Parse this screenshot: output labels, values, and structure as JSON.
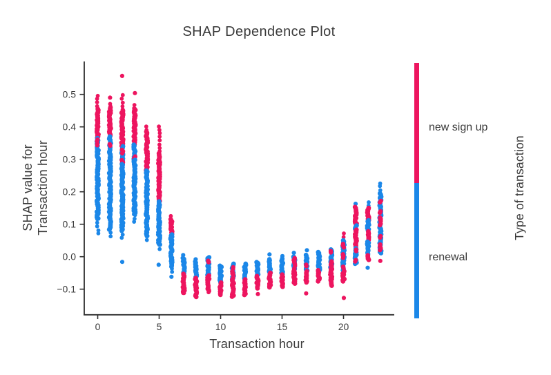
{
  "title": "SHAP Dependence Plot",
  "axes": {
    "x_label": "Transaction hour",
    "y_label_line1": "SHAP value for",
    "y_label_line2": "Transaction hour"
  },
  "legend": {
    "title": "Type of transaction",
    "top_label": "new sign up",
    "bottom_label": "renewal"
  },
  "colors": {
    "pink": "#ed155f",
    "blue": "#1b87e8",
    "text": "#3a3a3a",
    "axis": "#2f2f2f"
  },
  "chart_data": {
    "type": "scatter",
    "title": "SHAP Dependence Plot",
    "xlabel": "Transaction hour",
    "ylabel": "SHAP value for Transaction hour",
    "legend_title": "Type of transaction",
    "categories_legend": [
      "new sign up",
      "renewal"
    ],
    "series_colors": {
      "new sign up": "#ed155f",
      "renewal": "#1b87e8"
    },
    "xlim": [
      -1.3,
      24.2
    ],
    "ylim": [
      -0.155,
      0.61
    ],
    "x_ticks": [
      0,
      5,
      10,
      15,
      20
    ],
    "x_tick_labels": [
      "0",
      "5",
      "10",
      "15",
      "20"
    ],
    "y_ticks": [
      0.5,
      0.4,
      0.3,
      0.2,
      0.1,
      0.0,
      -0.1
    ],
    "y_tick_labels": [
      "0.5",
      "0.4",
      "0.3",
      "0.2",
      "0.1",
      "0.0",
      "−0.1"
    ],
    "grid": false,
    "legend_position": "right-colorbar",
    "columns": [
      {
        "hour": 0,
        "segments": [
          {
            "from": 0.495,
            "to": 0.455,
            "color": "pink",
            "style": "dots"
          },
          {
            "from": 0.455,
            "to": 0.365,
            "color": "pink",
            "style": "solid"
          },
          {
            "from": 0.365,
            "to": 0.295,
            "color": "blue",
            "style": "mixed",
            "fleck": "pink"
          },
          {
            "from": 0.295,
            "to": 0.115,
            "color": "blue",
            "style": "solid"
          },
          {
            "from": 0.115,
            "to": 0.062,
            "color": "blue",
            "style": "dots"
          }
        ]
      },
      {
        "hour": 1,
        "segments": [
          {
            "from": 0.49,
            "to": 0.49,
            "color": "pink",
            "style": "dot"
          },
          {
            "from": 0.472,
            "to": 0.46,
            "color": "pink",
            "style": "dots"
          },
          {
            "from": 0.46,
            "to": 0.37,
            "color": "pink",
            "style": "solid"
          },
          {
            "from": 0.37,
            "to": 0.305,
            "color": "blue",
            "style": "mixed",
            "fleck": "pink"
          },
          {
            "from": 0.305,
            "to": 0.083,
            "color": "blue",
            "style": "solid"
          },
          {
            "from": 0.083,
            "to": 0.055,
            "color": "blue",
            "style": "dots"
          }
        ]
      },
      {
        "hour": 2,
        "segments": [
          {
            "from": 0.557,
            "to": 0.557,
            "color": "pink",
            "style": "dot"
          },
          {
            "from": 0.497,
            "to": 0.45,
            "color": "pink",
            "style": "dots"
          },
          {
            "from": 0.45,
            "to": 0.34,
            "color": "pink",
            "style": "solid"
          },
          {
            "from": 0.34,
            "to": 0.285,
            "color": "blue",
            "style": "mixed",
            "fleck": "pink"
          },
          {
            "from": 0.285,
            "to": 0.079,
            "color": "blue",
            "style": "solid"
          },
          {
            "from": 0.079,
            "to": 0.048,
            "color": "blue",
            "style": "dots"
          },
          {
            "from": -0.016,
            "to": -0.016,
            "color": "blue",
            "style": "dot"
          }
        ]
      },
      {
        "hour": 3,
        "segments": [
          {
            "from": 0.504,
            "to": 0.504,
            "color": "pink",
            "style": "dot"
          },
          {
            "from": 0.468,
            "to": 0.455,
            "color": "pink",
            "style": "dots"
          },
          {
            "from": 0.455,
            "to": 0.345,
            "color": "pink",
            "style": "solid"
          },
          {
            "from": 0.345,
            "to": 0.298,
            "color": "blue",
            "style": "mixed",
            "fleck": "pink"
          },
          {
            "from": 0.298,
            "to": 0.128,
            "color": "blue",
            "style": "solid"
          },
          {
            "from": 0.128,
            "to": 0.105,
            "color": "blue",
            "style": "dots"
          }
        ]
      },
      {
        "hour": 4,
        "segments": [
          {
            "from": 0.402,
            "to": 0.385,
            "color": "pink",
            "style": "dots"
          },
          {
            "from": 0.385,
            "to": 0.265,
            "color": "pink",
            "style": "solid"
          },
          {
            "from": 0.265,
            "to": 0.062,
            "color": "blue",
            "style": "solid"
          },
          {
            "from": 0.062,
            "to": 0.048,
            "color": "blue",
            "style": "dots"
          }
        ]
      },
      {
        "hour": 5,
        "segments": [
          {
            "from": 0.4,
            "to": 0.318,
            "color": "pink",
            "style": "dots"
          },
          {
            "from": 0.318,
            "to": 0.17,
            "color": "pink",
            "style": "solid"
          },
          {
            "from": 0.17,
            "to": 0.036,
            "color": "blue",
            "style": "solid"
          },
          {
            "from": 0.036,
            "to": 0.022,
            "color": "blue",
            "style": "dots"
          },
          {
            "from": -0.025,
            "to": -0.025,
            "color": "blue",
            "style": "dot"
          }
        ]
      },
      {
        "hour": 6,
        "segments": [
          {
            "from": 0.125,
            "to": 0.115,
            "color": "pink",
            "style": "dots"
          },
          {
            "from": 0.115,
            "to": 0.068,
            "color": "pink",
            "style": "solid"
          },
          {
            "from": 0.068,
            "to": -0.032,
            "color": "blue",
            "style": "solid"
          },
          {
            "from": -0.035,
            "to": -0.05,
            "color": "blue",
            "style": "dots"
          },
          {
            "from": -0.062,
            "to": -0.062,
            "color": "blue",
            "style": "dot"
          }
        ]
      },
      {
        "hour": 7,
        "segments": [
          {
            "from": 0.005,
            "to": 0.005,
            "color": "blue",
            "style": "dot"
          },
          {
            "from": -0.004,
            "to": -0.053,
            "color": "blue",
            "style": "solid"
          },
          {
            "from": -0.053,
            "to": -0.112,
            "color": "pink",
            "style": "solid"
          },
          {
            "from": -0.112,
            "to": -0.12,
            "color": "pink",
            "style": "dots"
          }
        ]
      },
      {
        "hour": 8,
        "segments": [
          {
            "from": -0.008,
            "to": -0.008,
            "color": "blue",
            "style": "dot"
          },
          {
            "from": -0.015,
            "to": -0.066,
            "color": "blue",
            "style": "solid"
          },
          {
            "from": -0.066,
            "to": -0.125,
            "color": "pink",
            "style": "solid"
          },
          {
            "from": -0.125,
            "to": -0.132,
            "color": "pink",
            "style": "dots"
          }
        ]
      },
      {
        "hour": 9,
        "segments": [
          {
            "from": -0.002,
            "to": -0.058,
            "color": "blue",
            "style": "mixed",
            "fleck": "pink"
          },
          {
            "from": -0.058,
            "to": -0.108,
            "color": "pink",
            "style": "solid"
          },
          {
            "from": -0.108,
            "to": -0.115,
            "color": "pink",
            "style": "dots"
          }
        ]
      },
      {
        "hour": 10,
        "segments": [
          {
            "from": -0.028,
            "to": -0.08,
            "color": "blue",
            "style": "solid"
          },
          {
            "from": -0.08,
            "to": -0.12,
            "color": "pink",
            "style": "solid"
          }
        ]
      },
      {
        "hour": 11,
        "segments": [
          {
            "from": -0.022,
            "to": -0.072,
            "color": "blue",
            "style": "mixed",
            "fleck": "pink"
          },
          {
            "from": -0.072,
            "to": -0.125,
            "color": "pink",
            "style": "solid"
          }
        ]
      },
      {
        "hour": 12,
        "segments": [
          {
            "from": -0.022,
            "to": -0.07,
            "color": "blue",
            "style": "mixed",
            "fleck": "pink"
          },
          {
            "from": -0.07,
            "to": -0.12,
            "color": "pink",
            "style": "solid"
          }
        ]
      },
      {
        "hour": 13,
        "segments": [
          {
            "from": -0.017,
            "to": -0.06,
            "color": "blue",
            "style": "solid"
          },
          {
            "from": -0.06,
            "to": -0.1,
            "color": "pink",
            "style": "solid"
          },
          {
            "from": -0.115,
            "to": -0.115,
            "color": "pink",
            "style": "dot"
          }
        ]
      },
      {
        "hour": 14,
        "segments": [
          {
            "from": 0.007,
            "to": 0.007,
            "color": "blue",
            "style": "dot"
          },
          {
            "from": -0.008,
            "to": -0.05,
            "color": "blue",
            "style": "solid"
          },
          {
            "from": -0.05,
            "to": -0.096,
            "color": "pink",
            "style": "solid"
          }
        ]
      },
      {
        "hour": 15,
        "segments": [
          {
            "from": 0.002,
            "to": 0.002,
            "color": "blue",
            "style": "dot"
          },
          {
            "from": -0.006,
            "to": -0.055,
            "color": "blue",
            "style": "solid"
          },
          {
            "from": -0.055,
            "to": -0.095,
            "color": "pink",
            "style": "solid"
          }
        ]
      },
      {
        "hour": 16,
        "segments": [
          {
            "from": 0.012,
            "to": 0.012,
            "color": "blue",
            "style": "dot"
          },
          {
            "from": 0.0,
            "to": -0.042,
            "color": "blue",
            "style": "mixed",
            "fleck": "pink"
          },
          {
            "from": -0.042,
            "to": -0.086,
            "color": "pink",
            "style": "solid"
          }
        ]
      },
      {
        "hour": 17,
        "segments": [
          {
            "from": 0.02,
            "to": 0.02,
            "color": "blue",
            "style": "dot"
          },
          {
            "from": 0.005,
            "to": -0.045,
            "color": "blue",
            "style": "mixed",
            "fleck": "pink"
          },
          {
            "from": -0.045,
            "to": -0.082,
            "color": "pink",
            "style": "solid"
          },
          {
            "from": -0.113,
            "to": -0.113,
            "color": "pink",
            "style": "dot"
          }
        ]
      },
      {
        "hour": 18,
        "segments": [
          {
            "from": 0.014,
            "to": -0.042,
            "color": "blue",
            "style": "mixed",
            "fleck": "pink"
          },
          {
            "from": -0.042,
            "to": -0.078,
            "color": "pink",
            "style": "solid"
          }
        ]
      },
      {
        "hour": 19,
        "segments": [
          {
            "from": 0.022,
            "to": -0.038,
            "color": "blue",
            "style": "mixed",
            "fleck": "pink"
          },
          {
            "from": -0.038,
            "to": -0.092,
            "color": "pink",
            "style": "solid"
          }
        ]
      },
      {
        "hour": 20,
        "segments": [
          {
            "from": 0.072,
            "to": 0.055,
            "color": "pink",
            "style": "dots"
          },
          {
            "from": 0.05,
            "to": -0.045,
            "color": "blue",
            "style": "mixed",
            "fleck": "pink"
          },
          {
            "from": -0.045,
            "to": -0.077,
            "color": "pink",
            "style": "solid"
          },
          {
            "from": -0.127,
            "to": -0.127,
            "color": "pink",
            "style": "dot"
          }
        ]
      },
      {
        "hour": 21,
        "segments": [
          {
            "from": 0.163,
            "to": 0.163,
            "color": "blue",
            "style": "dot"
          },
          {
            "from": 0.153,
            "to": 0.096,
            "color": "pink",
            "style": "solid"
          },
          {
            "from": 0.096,
            "to": 0.083,
            "color": "blue",
            "style": "solid"
          },
          {
            "from": 0.083,
            "to": 0.026,
            "color": "pink",
            "style": "solid"
          },
          {
            "from": 0.026,
            "to": -0.025,
            "color": "blue",
            "style": "mixed",
            "fleck": "pink"
          }
        ]
      },
      {
        "hour": 22,
        "segments": [
          {
            "from": 0.167,
            "to": 0.155,
            "color": "blue",
            "style": "dots"
          },
          {
            "from": 0.15,
            "to": 0.112,
            "color": "pink",
            "style": "solid"
          },
          {
            "from": 0.112,
            "to": 0.078,
            "color": "blue",
            "style": "solid"
          },
          {
            "from": 0.078,
            "to": 0.046,
            "color": "pink",
            "style": "solid"
          },
          {
            "from": 0.046,
            "to": 0.004,
            "color": "blue",
            "style": "solid"
          },
          {
            "from": 0.004,
            "to": -0.013,
            "color": "pink",
            "style": "solid"
          },
          {
            "from": -0.034,
            "to": -0.034,
            "color": "blue",
            "style": "dot"
          }
        ]
      },
      {
        "hour": 23,
        "segments": [
          {
            "from": 0.227,
            "to": 0.198,
            "color": "blue",
            "style": "dots"
          },
          {
            "from": 0.195,
            "to": 0.008,
            "color": "blue",
            "style": "mixed",
            "fleck": "pink"
          },
          {
            "from": -0.013,
            "to": -0.013,
            "color": "pink",
            "style": "dot"
          }
        ]
      },
      {
        "note": "colorbar geometry",
        "hour": -1,
        "segments": []
      }
    ]
  }
}
